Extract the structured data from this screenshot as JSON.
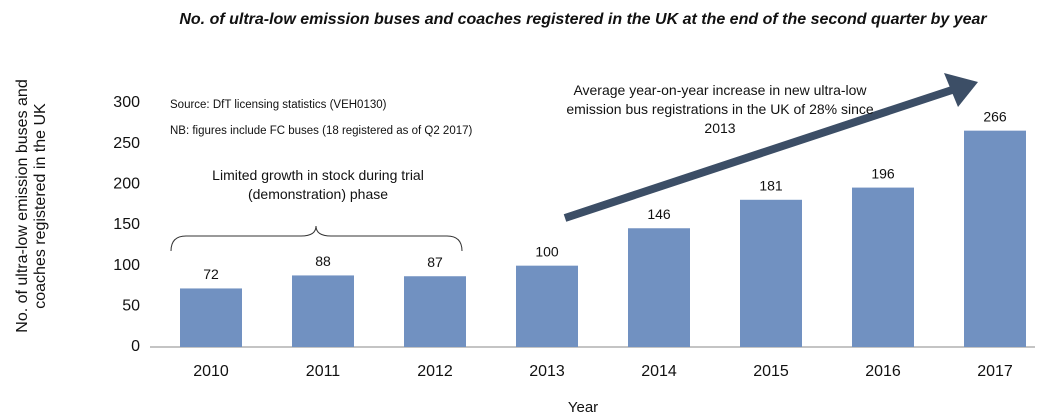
{
  "chart_data": {
    "type": "bar",
    "title": "No. of ultra-low emission buses and coaches registered in the UK at the end of the second quarter by year",
    "x_label": "Year",
    "y_label": "No. of ultra-low emission buses and coaches registered in the UK",
    "annotations": [
      "Source: DfT licensing statistics (VEH0130)",
      "NB:  figures include FC buses (18 registered as of Q2 2017)",
      "Limited growth  in stock during trial (demonstration)  phase",
      "Average  year-on-year  increase  in new ultra-low emission bus registrations  in the UK of 28% since 2013"
    ],
    "categories": [
      "2010",
      "2011",
      "2012",
      "2013",
      "2014",
      "2015",
      "2016",
      "2017"
    ],
    "values": [
      72,
      88,
      87,
      100,
      146,
      181,
      196,
      266
    ],
    "color": "#7191c1",
    "ylim": [
      0,
      300
    ],
    "yticks": [
      0,
      50,
      100,
      150,
      200,
      250,
      300
    ],
    "grid": false
  }
}
